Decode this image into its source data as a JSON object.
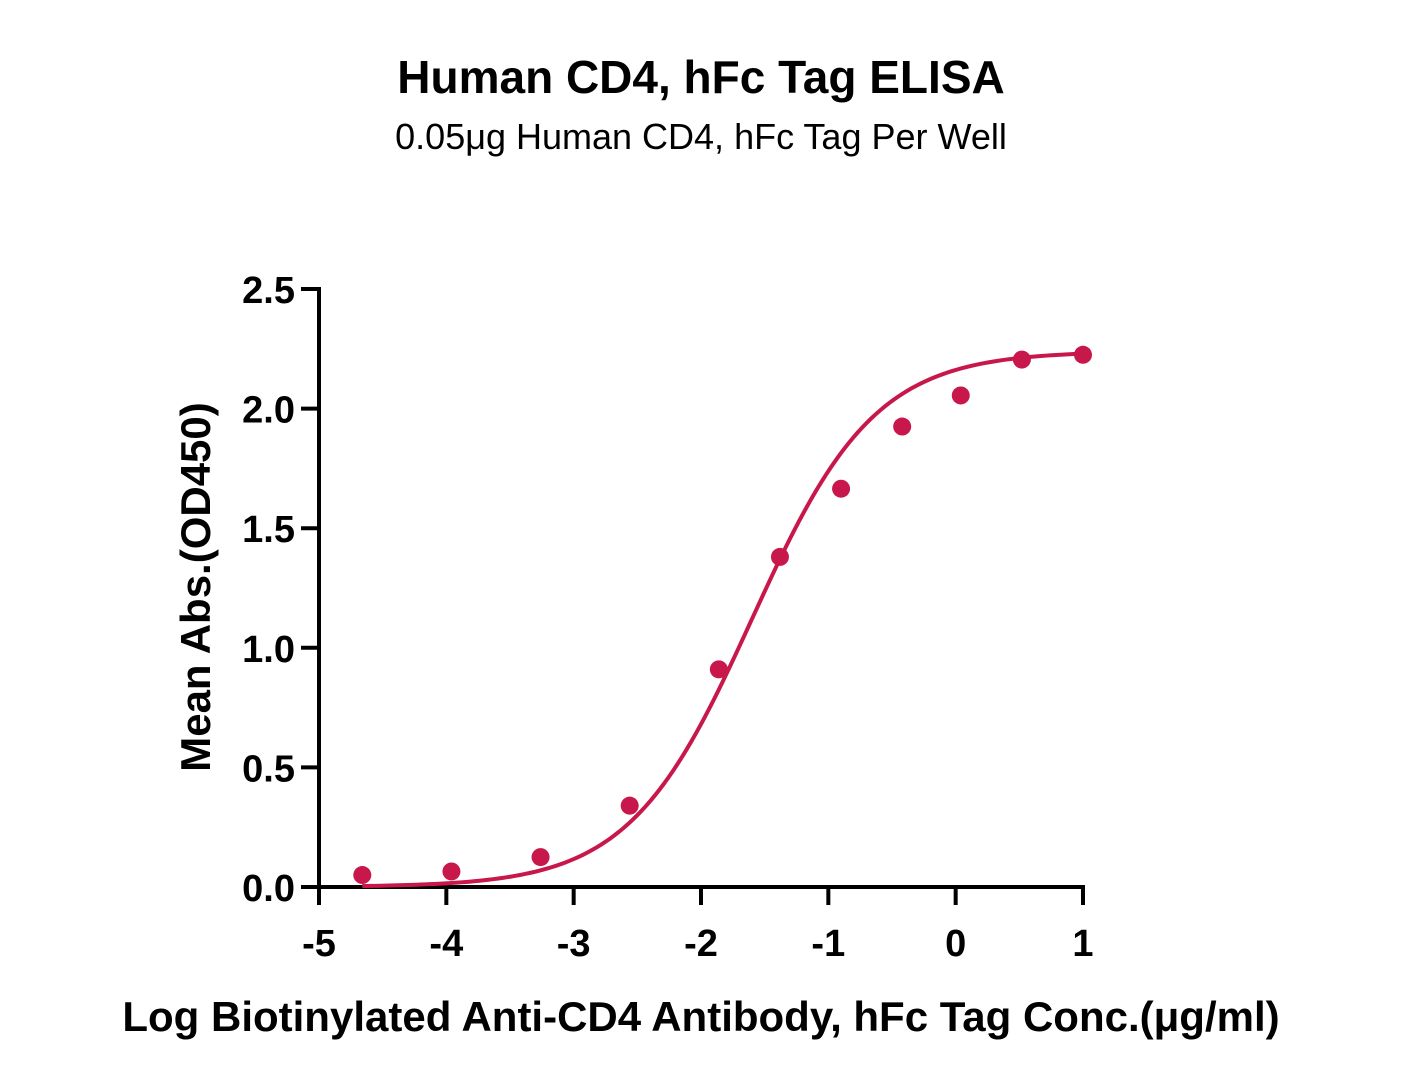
{
  "chart_data": {
    "type": "scatter",
    "title": "Human CD4, hFc Tag ELISA",
    "subtitle": "0.05μg Human CD4, hFc Tag Per Well",
    "xlabel": "Log Biotinylated Anti-CD4 Antibody, hFc Tag Conc.(μg/ml)",
    "ylabel": "Mean Abs.(OD450)",
    "xlim": [
      -5,
      1
    ],
    "ylim": [
      0,
      2.5
    ],
    "x_ticks": [
      "-5",
      "-4",
      "-3",
      "-2",
      "-1",
      "0",
      "1"
    ],
    "y_ticks": [
      "0.0",
      "0.5",
      "1.0",
      "1.5",
      "2.0",
      "2.5"
    ],
    "grid": false,
    "legend": "none",
    "series": [
      {
        "points": [
          {
            "x": -4.66,
            "y": 0.05
          },
          {
            "x": -3.96,
            "y": 0.065
          },
          {
            "x": -3.26,
            "y": 0.125
          },
          {
            "x": -2.56,
            "y": 0.34
          },
          {
            "x": -1.86,
            "y": 0.91
          },
          {
            "x": -1.38,
            "y": 1.38
          },
          {
            "x": -0.9,
            "y": 1.665
          },
          {
            "x": -0.42,
            "y": 1.925
          },
          {
            "x": 0.04,
            "y": 2.055
          },
          {
            "x": 0.52,
            "y": 2.205
          },
          {
            "x": 1.0,
            "y": 2.225
          }
        ],
        "fit": {
          "model": "4PL",
          "bottom": 0.0,
          "top": 2.24,
          "logEC50": -1.6,
          "hill": 0.9,
          "x_range": [
            -4.66,
            1.0
          ]
        },
        "color": "#C8174B"
      }
    ]
  }
}
